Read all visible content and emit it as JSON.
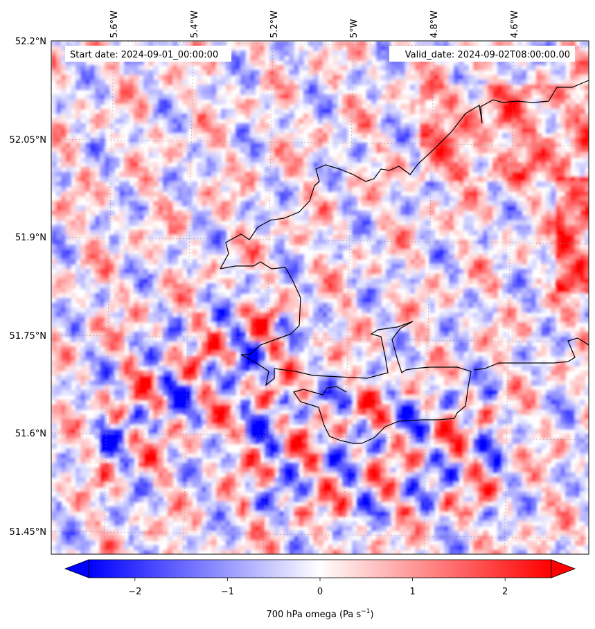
{
  "header": {
    "start_date": "Start date: 2024-09-01_00:00:00",
    "valid_date": "Valid_date: 2024-09-02T08:00:00.00"
  },
  "map": {
    "field": "700 hPa omega",
    "lon_ticks": [
      "5.6°W",
      "5.4°W",
      "5.2°W",
      "5°W",
      "4.8°W",
      "4.6°W"
    ],
    "lat_ticks": [
      "52.2°N",
      "52.05°N",
      "51.9°N",
      "51.75°N",
      "51.6°N",
      "51.45°N"
    ],
    "grid": true,
    "coastline_color": "#000000",
    "colormap": {
      "negative": "#0000ff",
      "zero": "#ffffff",
      "positive": "#ff0000"
    },
    "color_range": [
      -2.5,
      2.5
    ]
  },
  "colorbar": {
    "ticks": [
      "−2",
      "−1",
      "0",
      "1",
      "2"
    ],
    "tick_values": [
      -2,
      -1,
      0,
      1,
      2
    ],
    "label_main": "700 hPa omega (Pa s",
    "label_sup": "−1",
    "label_close": ")",
    "extend": "both"
  }
}
